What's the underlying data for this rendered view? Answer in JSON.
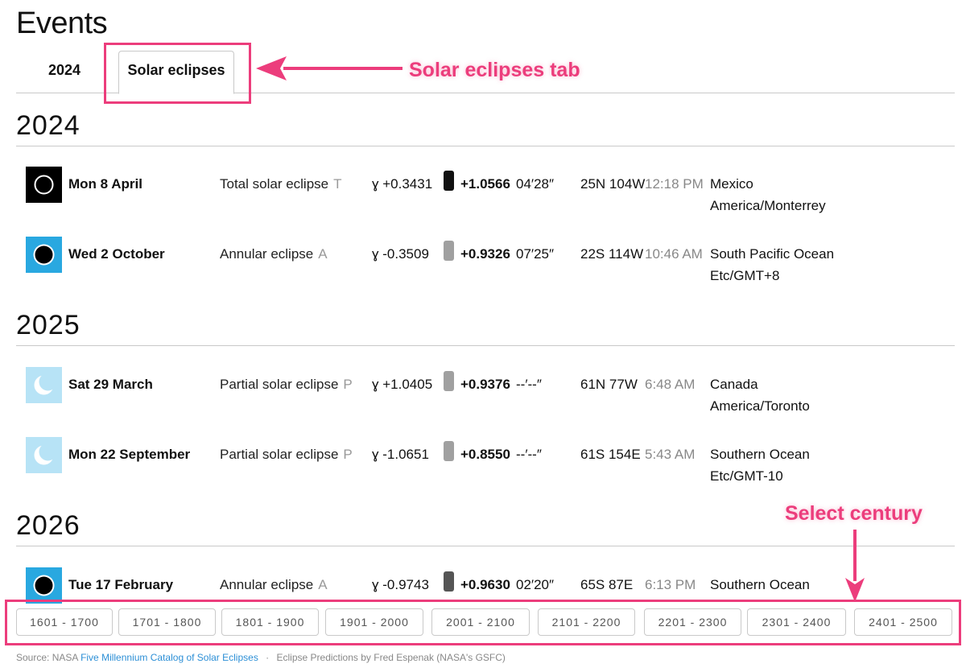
{
  "page": {
    "title": "Events"
  },
  "tabs": [
    {
      "label": "2024",
      "active": false
    },
    {
      "label": "Solar eclipses",
      "active": true
    }
  ],
  "annotations": {
    "tab_callout": "Solar eclipses tab",
    "century_callout": "Select century",
    "color": "#ec3d7c"
  },
  "years": [
    {
      "year": "2024",
      "events": [
        {
          "icon": "total-eclipse-icon",
          "icon_bg": "#000000",
          "date": "Mon 8 April",
          "type": "Total solar eclipse",
          "code": "T",
          "gamma": "ɣ +0.3431",
          "mag_bar_color": "#111111",
          "magnitude": "+1.0566",
          "duration": "04′28″",
          "coord": "25N 104W",
          "time": "12:18 PM",
          "location": "Mexico",
          "tz": "America/Monterrey"
        },
        {
          "icon": "annular-eclipse-icon",
          "icon_bg": "#29a8e0",
          "date": "Wed 2 October",
          "type": "Annular eclipse",
          "code": "A",
          "gamma": "ɣ -0.3509",
          "mag_bar_color": "#a0a0a0",
          "magnitude": "+0.9326",
          "duration": "07′25″",
          "coord": "22S 114W",
          "time": "10:46 AM",
          "location": "South Pacific Ocean",
          "tz": "Etc/GMT+8"
        }
      ]
    },
    {
      "year": "2025",
      "events": [
        {
          "icon": "partial-eclipse-icon",
          "icon_bg": "#b7e3f6",
          "date": "Sat 29 March",
          "type": "Partial solar eclipse",
          "code": "P",
          "gamma": "ɣ +1.0405",
          "mag_bar_color": "#a0a0a0",
          "magnitude": "+0.9376",
          "duration": "--′--″",
          "coord": "61N 77W",
          "time": "6:48 AM",
          "location": "Canada",
          "tz": "America/Toronto"
        },
        {
          "icon": "partial-eclipse-icon",
          "icon_bg": "#b7e3f6",
          "date": "Mon 22 September",
          "type": "Partial solar eclipse",
          "code": "P",
          "gamma": "ɣ -1.0651",
          "mag_bar_color": "#a0a0a0",
          "magnitude": "+0.8550",
          "duration": "--′--″",
          "coord": "61S 154E",
          "time": "5:43 AM",
          "location": "Southern Ocean",
          "tz": "Etc/GMT-10"
        }
      ]
    },
    {
      "year": "2026",
      "events": [
        {
          "icon": "annular-eclipse-icon",
          "icon_bg": "#29a8e0",
          "date": "Tue 17 February",
          "type": "Annular eclipse",
          "code": "A",
          "gamma": "ɣ -0.9743",
          "mag_bar_color": "#555555",
          "magnitude": "+0.9630",
          "duration": "02′20″",
          "coord": "65S 87E",
          "time": "6:13 PM",
          "location": "Southern Ocean",
          "tz": ""
        }
      ]
    }
  ],
  "centuries": [
    "1601 - 1700",
    "1701 - 1800",
    "1801 - 1900",
    "1901 - 2000",
    "2001 - 2100",
    "2101 - 2200",
    "2201 - 2300",
    "2301 - 2400",
    "2401 - 2500"
  ],
  "footer": {
    "source_prefix": "Source: NASA",
    "source_link": "Five Millennium Catalog of Solar Eclipses",
    "separator": "·",
    "credit": "Eclipse Predictions by Fred Espenak (NASA's GSFC)"
  }
}
